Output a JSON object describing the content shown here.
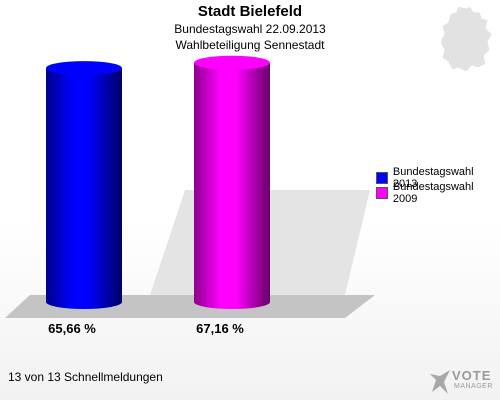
{
  "header": {
    "title": "Stadt Bielefeld",
    "subtitle": "Bundestagswahl 22.09.2013",
    "subtitle2": "Wahlbeteiligung Sennestadt"
  },
  "footer": {
    "text": "13 von 13 Schnellmeldungen"
  },
  "logo": {
    "text": "VOTE",
    "sub": "MANAGER",
    "icon": "vote-manager-logo-icon"
  },
  "map_icon": "germany-map-icon",
  "chart_data": {
    "type": "bar",
    "title": "Stadt Bielefeld",
    "categories": [
      "Bundestagswahl 2013",
      "Bundestagswahl 2009"
    ],
    "values": [
      65.66,
      67.16
    ],
    "value_labels": [
      "65,66 %",
      "67,16 %"
    ],
    "colors": [
      "#0000ff",
      "#ff00ff"
    ],
    "ylim": [
      0,
      80
    ],
    "style": "3d-cylinder",
    "legend": {
      "position": "right",
      "entries": [
        {
          "name": "Bundestagswahl 2013",
          "color": "#0000ff"
        },
        {
          "name": "Bundestagswahl 2009",
          "color": "#ff00ff"
        }
      ]
    }
  }
}
